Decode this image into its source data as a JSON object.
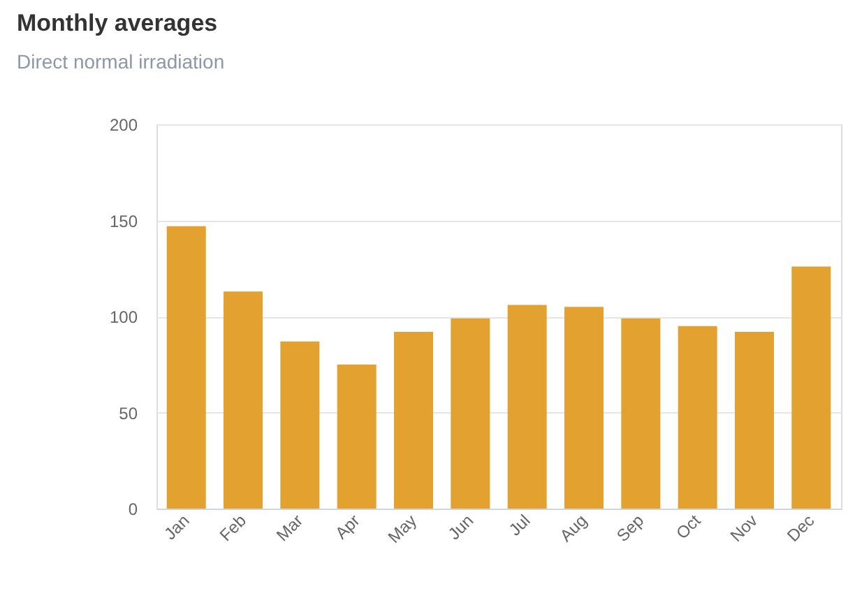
{
  "chart_data": {
    "type": "bar",
    "title": "Monthly averages",
    "subtitle": "Direct normal irradiation",
    "categories": [
      "Jan",
      "Feb",
      "Mar",
      "Apr",
      "May",
      "Jun",
      "Jul",
      "Aug",
      "Sep",
      "Oct",
      "Nov",
      "Dec"
    ],
    "values": [
      147,
      113,
      87,
      75,
      92,
      99,
      106,
      105,
      99,
      95,
      92,
      126
    ],
    "color": "#e3a130",
    "ylim": [
      0,
      200
    ],
    "yticks": [
      0,
      50,
      100,
      150,
      200
    ],
    "grid": "y"
  }
}
